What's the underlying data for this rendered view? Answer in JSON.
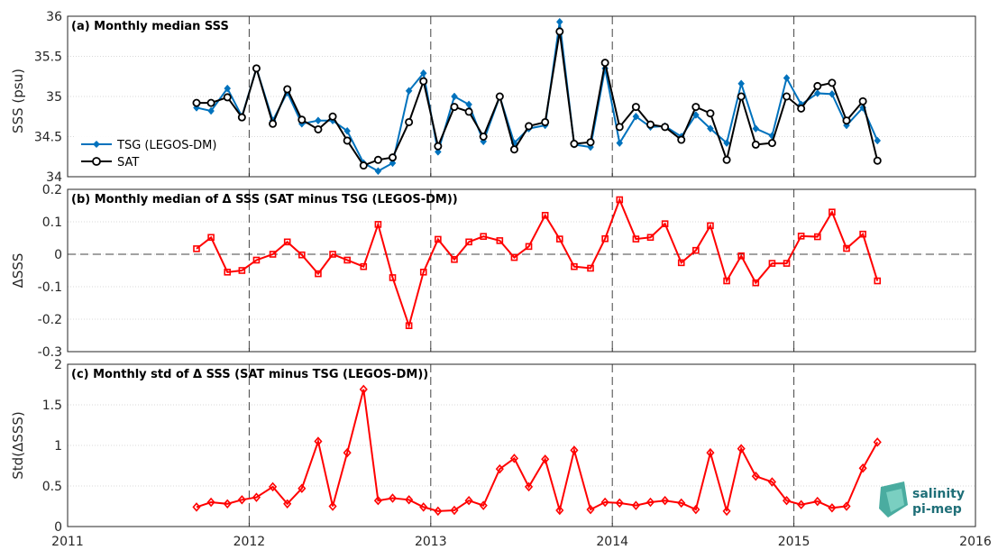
{
  "x_ticks": [
    "2011",
    "2012",
    "2013",
    "2014",
    "2015",
    "2016"
  ],
  "logo": {
    "line1": "salinity",
    "line2": "pi-mep"
  },
  "colors": {
    "tsg": "#0072BD",
    "sat": "#000000",
    "delta": "#FF0000",
    "grid": "#d9d9d9",
    "vline": "#444444"
  },
  "chart_data": [
    {
      "type": "line",
      "title": "(a) Monthly median SSS",
      "xlabel": "",
      "ylabel": "SSS (psu)",
      "xlim": [
        2011,
        2016
      ],
      "ylim": [
        34,
        36
      ],
      "yticks": [
        "34",
        "34.5",
        "35",
        "35.5",
        "36"
      ],
      "ytick_values": [
        34,
        34.5,
        35,
        35.5,
        36
      ],
      "legend_position": "left",
      "series": [
        {
          "name": "TSG (LEGOS-DM)",
          "marker": "diamond",
          "x": [
            2011.71,
            2011.79,
            2011.88,
            2011.96,
            2012.04,
            2012.13,
            2012.21,
            2012.29,
            2012.38,
            2012.46,
            2012.54,
            2012.63,
            2012.71,
            2012.79,
            2012.88,
            2012.96,
            2013.04,
            2013.13,
            2013.21,
            2013.29,
            2013.38,
            2013.46,
            2013.54,
            2013.63,
            2013.71,
            2013.79,
            2013.88,
            2013.96,
            2014.04,
            2014.13,
            2014.21,
            2014.29,
            2014.38,
            2014.46,
            2014.54,
            2014.63,
            2014.71,
            2014.79,
            2014.88,
            2014.96,
            2015.04,
            2015.13,
            2015.21,
            2015.29,
            2015.38,
            2015.46
          ],
          "y": [
            34.86,
            34.82,
            35.1,
            34.75,
            35.35,
            34.7,
            35.05,
            34.66,
            34.7,
            34.7,
            34.57,
            34.17,
            34.07,
            34.17,
            35.07,
            35.29,
            34.31,
            35.0,
            34.9,
            34.44,
            35.0,
            34.42,
            34.6,
            34.64,
            35.93,
            34.4,
            34.37,
            35.35,
            34.42,
            34.75,
            34.62,
            34.63,
            34.5,
            34.77,
            34.6,
            34.42,
            35.16,
            34.6,
            34.51,
            35.23,
            34.9,
            35.04,
            35.03,
            34.64,
            34.86,
            34.45
          ]
        },
        {
          "name": "SAT",
          "marker": "circle",
          "x": [
            2011.71,
            2011.79,
            2011.88,
            2011.96,
            2012.04,
            2012.13,
            2012.21,
            2012.29,
            2012.38,
            2012.46,
            2012.54,
            2012.63,
            2012.71,
            2012.79,
            2012.88,
            2012.96,
            2013.04,
            2013.13,
            2013.21,
            2013.29,
            2013.38,
            2013.46,
            2013.54,
            2013.63,
            2013.71,
            2013.79,
            2013.88,
            2013.96,
            2014.04,
            2014.13,
            2014.21,
            2014.29,
            2014.38,
            2014.46,
            2014.54,
            2014.63,
            2014.71,
            2014.79,
            2014.88,
            2014.96,
            2015.04,
            2015.13,
            2015.21,
            2015.29,
            2015.38,
            2015.46
          ],
          "y": [
            34.92,
            34.92,
            34.99,
            34.74,
            35.35,
            34.66,
            35.09,
            34.71,
            34.59,
            34.75,
            34.45,
            34.14,
            34.21,
            34.24,
            34.68,
            35.19,
            34.38,
            34.87,
            34.81,
            34.5,
            35.0,
            34.34,
            34.63,
            34.68,
            35.81,
            34.41,
            34.43,
            35.42,
            34.62,
            34.87,
            34.65,
            34.62,
            34.46,
            34.87,
            34.79,
            34.21,
            35.0,
            34.4,
            34.42,
            35.0,
            34.85,
            35.13,
            35.17,
            34.7,
            34.94,
            34.2
          ]
        }
      ]
    },
    {
      "type": "line",
      "title": "(b) Monthly median of Δ SSS (SAT minus TSG (LEGOS-DM))",
      "xlabel": "",
      "ylabel": "ΔSSS",
      "xlim": [
        2011,
        2016
      ],
      "ylim": [
        -0.3,
        0.2
      ],
      "yticks": [
        "-0.3",
        "-0.2",
        "-0.1",
        "0",
        "0.1",
        "0.2"
      ],
      "ytick_values": [
        -0.3,
        -0.2,
        -0.1,
        0,
        0.1,
        0.2
      ],
      "zero_line": true,
      "series": [
        {
          "name": "",
          "marker": "square",
          "x": [
            2011.71,
            2011.79,
            2011.88,
            2011.96,
            2012.04,
            2012.13,
            2012.21,
            2012.29,
            2012.38,
            2012.46,
            2012.54,
            2012.63,
            2012.71,
            2012.79,
            2012.88,
            2012.96,
            2013.04,
            2013.13,
            2013.21,
            2013.29,
            2013.38,
            2013.46,
            2013.54,
            2013.63,
            2013.71,
            2013.79,
            2013.88,
            2013.96,
            2014.04,
            2014.13,
            2014.21,
            2014.29,
            2014.38,
            2014.46,
            2014.54,
            2014.63,
            2014.71,
            2014.79,
            2014.88,
            2014.96,
            2015.04,
            2015.13,
            2015.21,
            2015.29,
            2015.38,
            2015.46
          ],
          "y": [
            0.017,
            0.052,
            -0.055,
            -0.05,
            -0.018,
            0.0,
            0.038,
            -0.002,
            -0.06,
            0.0,
            -0.018,
            -0.038,
            0.092,
            -0.072,
            -0.22,
            -0.055,
            0.046,
            -0.016,
            0.038,
            0.055,
            0.042,
            -0.01,
            0.024,
            0.12,
            0.047,
            -0.038,
            -0.043,
            0.048,
            0.168,
            0.047,
            0.052,
            0.094,
            -0.026,
            0.012,
            0.088,
            -0.082,
            -0.005,
            -0.088,
            -0.028,
            -0.028,
            0.056,
            0.054,
            0.13,
            0.018,
            0.062,
            -0.082
          ]
        }
      ]
    },
    {
      "type": "line",
      "title": "(c) Monthly std of Δ SSS (SAT minus TSG (LEGOS-DM))",
      "xlabel": "",
      "ylabel": "Std(ΔSSS)",
      "xlim": [
        2011,
        2016
      ],
      "ylim": [
        0,
        2
      ],
      "yticks": [
        "0",
        "0.5",
        "1",
        "1.5",
        "2"
      ],
      "ytick_values": [
        0,
        0.5,
        1,
        1.5,
        2
      ],
      "series": [
        {
          "name": "",
          "marker": "diamond",
          "x": [
            2011.71,
            2011.79,
            2011.88,
            2011.96,
            2012.04,
            2012.13,
            2012.21,
            2012.29,
            2012.38,
            2012.46,
            2012.54,
            2012.63,
            2012.71,
            2012.79,
            2012.88,
            2012.96,
            2013.04,
            2013.13,
            2013.21,
            2013.29,
            2013.38,
            2013.46,
            2013.54,
            2013.63,
            2013.71,
            2013.79,
            2013.88,
            2013.96,
            2014.04,
            2014.13,
            2014.21,
            2014.29,
            2014.38,
            2014.46,
            2014.54,
            2014.63,
            2014.71,
            2014.79,
            2014.88,
            2014.96,
            2015.04,
            2015.13,
            2015.21,
            2015.29,
            2015.38,
            2015.46
          ],
          "y": [
            0.24,
            0.3,
            0.28,
            0.33,
            0.36,
            0.49,
            0.28,
            0.47,
            1.05,
            0.25,
            0.91,
            1.69,
            0.32,
            0.35,
            0.33,
            0.24,
            0.19,
            0.2,
            0.32,
            0.26,
            0.71,
            0.84,
            0.49,
            0.83,
            0.2,
            0.94,
            0.21,
            0.3,
            0.29,
            0.26,
            0.3,
            0.32,
            0.29,
            0.21,
            0.91,
            0.19,
            0.96,
            0.62,
            0.55,
            0.32,
            0.27,
            0.31,
            0.23,
            0.25,
            0.72,
            1.04
          ]
        }
      ]
    }
  ]
}
